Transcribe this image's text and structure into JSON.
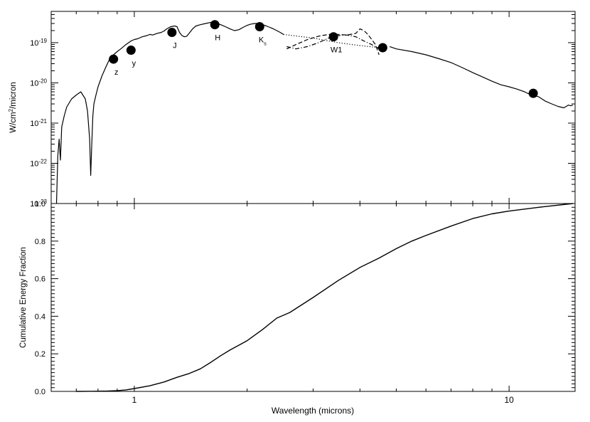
{
  "figure": {
    "xlabel": "Wavelength (microns)",
    "x_tick_labels": [
      "1",
      "10"
    ]
  },
  "chart_data": [
    {
      "type": "line",
      "panel": "top",
      "ylabel_base": "W/cm",
      "ylabel_sup": "2",
      "ylabel_tail": "/micron",
      "xscale": "log",
      "yscale": "log",
      "xlim": [
        0.6,
        15
      ],
      "ylim": [
        1e-23,
        6e-19
      ],
      "y_ticks": [
        {
          "base": "10",
          "exp": "-19",
          "value": 1e-19
        },
        {
          "base": "10",
          "exp": "-20",
          "value": 1e-20
        },
        {
          "base": "10",
          "exp": "-21",
          "value": 1e-21
        },
        {
          "base": "10",
          "exp": "-22",
          "value": 1e-22
        },
        {
          "base": "10",
          "exp": "-23",
          "value": 1e-23
        }
      ],
      "series": [
        {
          "style": "solid",
          "x": [
            0.62,
            0.625,
            0.63,
            0.635,
            0.64,
            0.65,
            0.66,
            0.68,
            0.7,
            0.72,
            0.74,
            0.75,
            0.76,
            0.765,
            0.77,
            0.775,
            0.78,
            0.79,
            0.8,
            0.82,
            0.84,
            0.86,
            0.88,
            0.9,
            0.92,
            0.95,
            0.98,
            1.0,
            1.02,
            1.05,
            1.08,
            1.1,
            1.12,
            1.15,
            1.18,
            1.2,
            1.22,
            1.25,
            1.28,
            1.3,
            1.32,
            1.34,
            1.36,
            1.38,
            1.4,
            1.43,
            1.46,
            1.5,
            1.55,
            1.6,
            1.65,
            1.7,
            1.75,
            1.8,
            1.85,
            1.9,
            1.95,
            2.0,
            2.05,
            2.1,
            2.15,
            2.2,
            2.25,
            2.3,
            2.35,
            2.4,
            2.45,
            2.5,
            2.6,
            2.8,
            3.0,
            3.3,
            3.6,
            3.9,
            4.2,
            4.5,
            4.8,
            5.0,
            5.5,
            6.0,
            6.5,
            7.0,
            7.5,
            8.0,
            8.5,
            9.0,
            9.5,
            10.0,
            10.5,
            11.0,
            11.2,
            11.5,
            12.0,
            12.5,
            13.0,
            13.5,
            14.0,
            14.2,
            14.4,
            14.6,
            14.8
          ],
          "values": [
            1e-23,
            1.5e-22,
            4e-22,
            1.2e-22,
            8e-22,
            1.5e-21,
            2.5e-21,
            4e-21,
            5e-21,
            6e-21,
            4e-21,
            2e-21,
            4e-22,
            5e-23,
            3e-22,
            1.5e-21,
            3e-21,
            5e-21,
            8e-21,
            1.5e-20,
            2.5e-20,
            4e-20,
            5e-20,
            6e-20,
            7e-20,
            9e-20,
            1.1e-19,
            1.2e-19,
            1.25e-19,
            1.4e-19,
            1.5e-19,
            1.6e-19,
            1.55e-19,
            1.7e-19,
            1.8e-19,
            1.95e-19,
            2.2e-19,
            2.5e-19,
            2.6e-19,
            2.5e-19,
            1.8e-19,
            1.5e-19,
            1.4e-19,
            1.45e-19,
            1.7e-19,
            2.2e-19,
            2.6e-19,
            2.8e-19,
            3e-19,
            3.2e-19,
            3.1e-19,
            2.8e-19,
            2.5e-19,
            2.2e-19,
            2e-19,
            2.1e-19,
            2.4e-19,
            2.7e-19,
            2.9e-19,
            3e-19,
            3e-19,
            2.8e-19,
            2.6e-19,
            2.4e-19,
            2.2e-19,
            2e-19,
            1.8e-19,
            1.6e-19,
            null,
            null,
            null,
            null,
            null,
            null,
            null,
            null,
            8e-20,
            7e-20,
            6e-20,
            5e-20,
            4e-20,
            3.2e-20,
            2.4e-20,
            1.8e-20,
            1.4e-20,
            1.1e-20,
            9e-21,
            8e-21,
            7e-21,
            6e-21,
            5.5e-21,
            5e-21,
            4.5e-21,
            3.5e-21,
            3e-21,
            2.6e-21,
            2.4e-21,
            2.6e-21,
            2.8e-21,
            2.7e-21,
            2.8e-21
          ]
        },
        {
          "style": "dotted",
          "x": [
            2.5,
            3.0,
            3.5,
            4.0,
            4.5
          ],
          "values": [
            1.6e-19,
            1.3e-19,
            1e-19,
            8.5e-20,
            7.5e-20
          ]
        },
        {
          "style": "dashed",
          "x": [
            2.55,
            2.7,
            2.9,
            3.1,
            3.3,
            3.5,
            3.7,
            3.9,
            4.0,
            4.1,
            4.2,
            4.3,
            4.4,
            4.5
          ],
          "values": [
            7e-20,
            9e-20,
            1.2e-19,
            1.45e-19,
            1.6e-19,
            1.6e-19,
            1.55e-19,
            1.7e-19,
            2.2e-19,
            2e-19,
            1.6e-19,
            1.2e-19,
            9e-20,
            5e-20
          ]
        },
        {
          "style": "dashdot",
          "x": [
            2.55,
            2.7,
            2.9,
            3.1,
            3.3,
            3.5,
            3.7,
            3.9,
            4.1,
            4.3,
            4.5
          ],
          "values": [
            8e-20,
            7e-20,
            8e-20,
            1e-19,
            1.3e-19,
            1.5e-19,
            1.55e-19,
            1.4e-19,
            1.1e-19,
            9e-20,
            7e-20
          ]
        }
      ],
      "points": [
        {
          "label": "z",
          "sub": "",
          "x": 0.88,
          "y": 3.9e-20,
          "label_pos": "below"
        },
        {
          "label": "y",
          "sub": "",
          "x": 0.98,
          "y": 6.5e-20,
          "label_pos": "below"
        },
        {
          "label": "J",
          "sub": "",
          "x": 1.26,
          "y": 1.8e-19,
          "label_pos": "below"
        },
        {
          "label": "H",
          "sub": "",
          "x": 1.64,
          "y": 2.8e-19,
          "label_pos": "below"
        },
        {
          "label": "K",
          "sub": "s",
          "x": 2.16,
          "y": 2.5e-19,
          "label_pos": "below"
        },
        {
          "label": "W1",
          "sub": "",
          "x": 3.4,
          "y": 1.4e-19,
          "label_pos": "below"
        },
        {
          "label": "",
          "sub": "",
          "x": 4.6,
          "y": 7.5e-20,
          "label_pos": "none"
        },
        {
          "label": "",
          "sub": "",
          "x": 11.6,
          "y": 5.5e-21,
          "label_pos": "none"
        }
      ]
    },
    {
      "type": "line",
      "panel": "bottom",
      "ylabel": "Cumulative Energy Fraction",
      "xscale": "log",
      "yscale": "linear",
      "xlim": [
        0.6,
        15
      ],
      "ylim": [
        0,
        1.0
      ],
      "y_tick_labels": [
        "0.0",
        "0.2",
        "0.4",
        "0.6",
        "0.8",
        "1.0"
      ],
      "series": [
        {
          "style": "solid",
          "x": [
            0.7,
            0.8,
            0.85,
            0.9,
            0.95,
            1.0,
            1.1,
            1.2,
            1.3,
            1.4,
            1.5,
            1.6,
            1.7,
            1.8,
            2.0,
            2.2,
            2.4,
            2.6,
            3.0,
            3.5,
            4.0,
            4.5,
            5.0,
            5.5,
            6.0,
            7.0,
            8.0,
            9.0,
            10.0,
            12.0,
            14.8
          ],
          "values": [
            0.0,
            0.001,
            0.002,
            0.004,
            0.008,
            0.015,
            0.03,
            0.05,
            0.075,
            0.095,
            0.12,
            0.155,
            0.19,
            0.22,
            0.27,
            0.33,
            0.39,
            0.42,
            0.5,
            0.59,
            0.66,
            0.71,
            0.76,
            0.8,
            0.83,
            0.88,
            0.92,
            0.945,
            0.96,
            0.98,
            1.0
          ]
        }
      ]
    }
  ]
}
